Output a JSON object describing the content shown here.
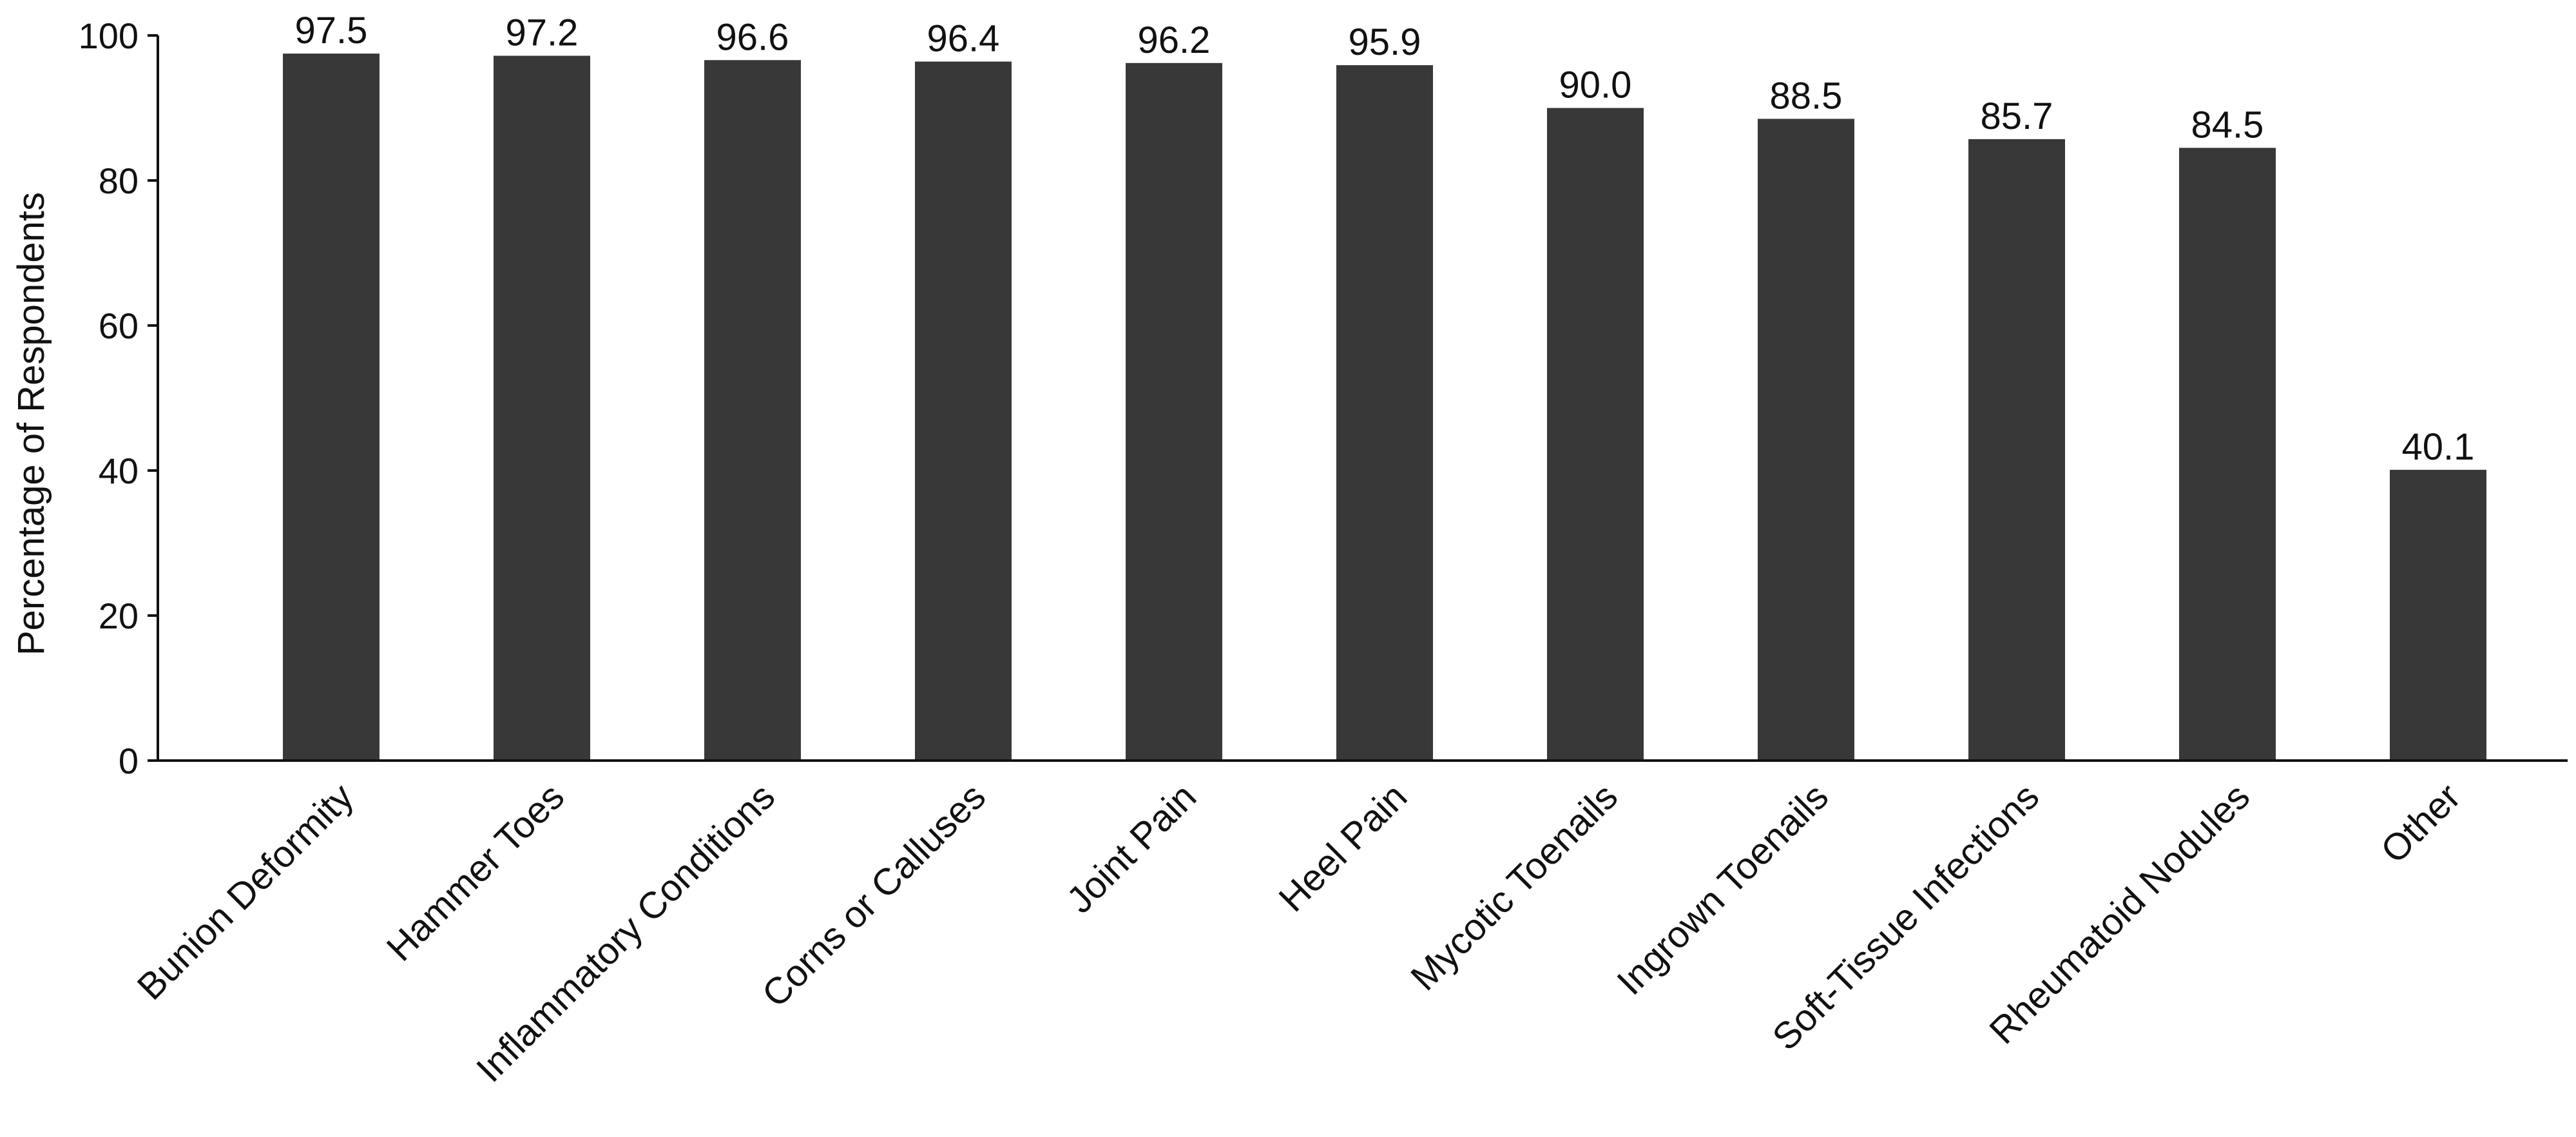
{
  "chart_data": {
    "type": "bar",
    "title": "",
    "xlabel": "",
    "ylabel": "Percentage of Respondents",
    "ylim": [
      0,
      100
    ],
    "yticks": [
      "0",
      "20",
      "40",
      "60",
      "80",
      "100"
    ],
    "grid": false,
    "categories": [
      "Bunion Deformity",
      "Hammer Toes",
      "Inflammatory Conditions",
      "Corns or Calluses",
      "Joint Pain",
      "Heel Pain",
      "Mycotic Toenails",
      "Ingrown Toenails",
      "Soft-Tissue Infections",
      "Rheumatoid Nodules",
      "Other"
    ],
    "values": [
      97.5,
      97.2,
      96.6,
      96.4,
      96.2,
      95.9,
      90.0,
      88.5,
      85.7,
      84.5,
      40.1
    ],
    "value_labels": [
      "97.5",
      "97.2",
      "96.6",
      "96.4",
      "96.2",
      "95.9",
      "90.0",
      "88.5",
      "85.7",
      "84.5",
      "40.1"
    ],
    "bar_color": "#383838"
  }
}
